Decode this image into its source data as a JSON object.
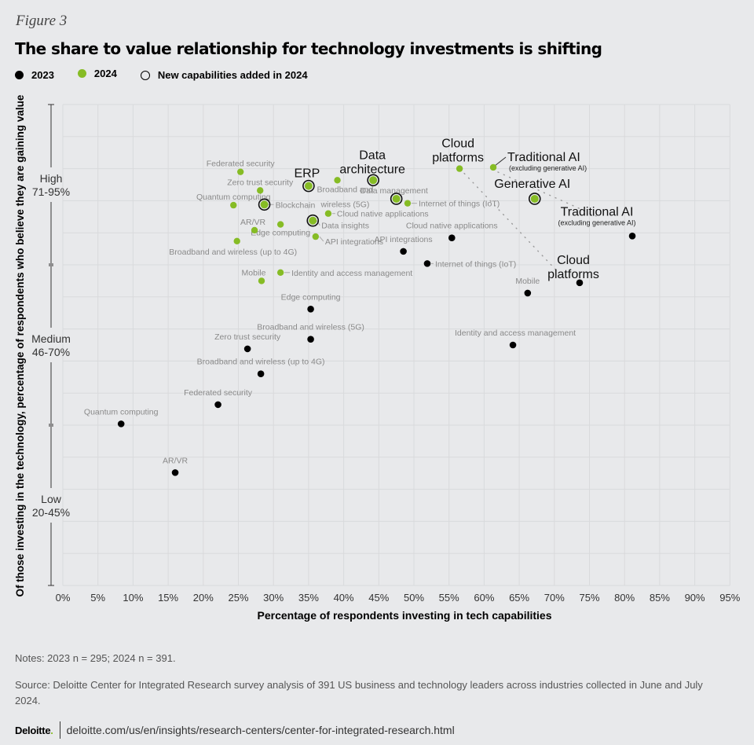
{
  "figure_label": "Figure 3",
  "title": "The share to value relationship for technology investments is shifting",
  "legend": [
    {
      "label": "2023",
      "color": "#000000",
      "style": "filled"
    },
    {
      "label": "2024",
      "color": "#86bc25",
      "style": "filled"
    },
    {
      "label": "New capabilities added in 2024",
      "color": "#000000",
      "style": "outline"
    }
  ],
  "notes": "Notes: 2023 n = 295; 2024 n = 391.",
  "source": "Source: Deloitte Center for Integrated Research survey analysis of 391 US business and technology leaders across industries collected in June and July 2024.",
  "footer": {
    "brand": "Deloitte",
    "brand_dot": ".",
    "url": "deloitte.com/us/en/insights/research-centers/center-for-integrated-research.html"
  },
  "chart_data": {
    "type": "scatter",
    "title": "The share to value relationship for technology investments is shifting",
    "xlabel": "Percentage  of respondents investing in tech capabilities",
    "ylabel": "Of those investing in the technology, percentage of respondents who believe they are gaining value",
    "xlim": [
      0,
      95
    ],
    "ylim": [
      20,
      95
    ],
    "x_ticks": [
      "0%",
      "5%",
      "10%",
      "15%",
      "20%",
      "25%",
      "30%",
      "35%",
      "40%",
      "45%",
      "50%",
      "55%",
      "60%",
      "65%",
      "70%",
      "75%",
      "80%",
      "85%",
      "90%",
      "95%"
    ],
    "y_bands": [
      {
        "name": "High",
        "range_label": "71-95%",
        "from": 70,
        "to": 95
      },
      {
        "name": "Medium",
        "range_label": "46-70%",
        "from": 45,
        "to": 70
      },
      {
        "name": "Low",
        "range_label": "20-45%",
        "from": 20,
        "to": 45
      }
    ],
    "grid": true,
    "legend_position": "top-left",
    "colors": {
      "2023": "#000000",
      "2024": "#86bc25",
      "label": "#8a8a8a",
      "highlight_label": "#111111"
    },
    "series": [
      {
        "name": "2023",
        "points": [
          {
            "label": "Traditional AI",
            "sublabel": "(excluding generative AI)",
            "x": 81.1,
            "y": 74.5,
            "highlight": true
          },
          {
            "label": "Cloud platforms",
            "x": 73.6,
            "y": 67.2,
            "highlight": true
          },
          {
            "label": "Mobile",
            "x": 66.2,
            "y": 65.6
          },
          {
            "label": "Identity and access management",
            "x": 64.1,
            "y": 57.5
          },
          {
            "label": "Cloud native applications",
            "x": 55.4,
            "y": 74.2
          },
          {
            "label": "API integrations",
            "x": 48.5,
            "y": 72.1
          },
          {
            "label": "Internet of things (IoT)",
            "x": 51.9,
            "y": 70.2
          },
          {
            "label": "Edge computing",
            "x": 35.3,
            "y": 63.1
          },
          {
            "label": "Broadband and wireless  (5G)",
            "x": 35.3,
            "y": 58.4
          },
          {
            "label": "Zero trust security",
            "x": 26.3,
            "y": 56.9
          },
          {
            "label": "Broadband and wireless (up to 4G)",
            "x": 28.2,
            "y": 53.0
          },
          {
            "label": "Federated security",
            "x": 22.1,
            "y": 48.2
          },
          {
            "label": "Quantum computing",
            "x": 8.3,
            "y": 45.2
          },
          {
            "label": "AR/VR",
            "x": 16.0,
            "y": 37.6
          }
        ]
      },
      {
        "name": "2024",
        "points": [
          {
            "label": "Traditional AI",
            "sublabel": "(excluding generative AI)",
            "x": 61.3,
            "y": 85.2,
            "highlight": true
          },
          {
            "label": "Cloud platforms",
            "x": 56.5,
            "y": 85.0,
            "highlight": true
          },
          {
            "label": "Generative AI",
            "x": 67.2,
            "y": 80.3,
            "highlight": true,
            "new": true
          },
          {
            "label": "Data architecture",
            "x": 44.2,
            "y": 83.2,
            "highlight": true,
            "new": true
          },
          {
            "label": "ERP",
            "x": 35.0,
            "y": 82.3,
            "highlight": true,
            "new": true
          },
          {
            "label": "Data management",
            "x": 47.5,
            "y": 80.3,
            "new": true
          },
          {
            "label": "Internet of things (IoT)",
            "x": 49.1,
            "y": 79.6
          },
          {
            "label": "Broadband and wireless  (5G)",
            "x": 39.1,
            "y": 83.2
          },
          {
            "label": "Cloud native applications",
            "x": 37.8,
            "y": 78.0
          },
          {
            "label": "Data insights",
            "x": 35.6,
            "y": 76.9,
            "new": true
          },
          {
            "label": "API integrations",
            "x": 36.0,
            "y": 74.4
          },
          {
            "label": "Blockchain",
            "x": 28.7,
            "y": 79.4,
            "new": true
          },
          {
            "label": "Federated security",
            "x": 25.3,
            "y": 84.5
          },
          {
            "label": "Zero trust security",
            "x": 28.1,
            "y": 81.6
          },
          {
            "label": "Quantum computing",
            "x": 24.3,
            "y": 79.3
          },
          {
            "label": "AR/VR",
            "x": 27.3,
            "y": 75.4
          },
          {
            "label": "Edge computing",
            "x": 31.0,
            "y": 76.3
          },
          {
            "label": "Broadband and wireless (up to 4G)",
            "x": 24.8,
            "y": 73.7
          },
          {
            "label": "Mobile",
            "x": 28.3,
            "y": 67.5
          },
          {
            "label": "Identity and access management",
            "x": 31.0,
            "y": 68.8
          }
        ]
      }
    ],
    "connectors": [
      {
        "label": "Cloud platforms",
        "from": "2024",
        "to": "2023"
      },
      {
        "label": "Traditional AI",
        "from": "2024",
        "to": "2023"
      }
    ]
  }
}
